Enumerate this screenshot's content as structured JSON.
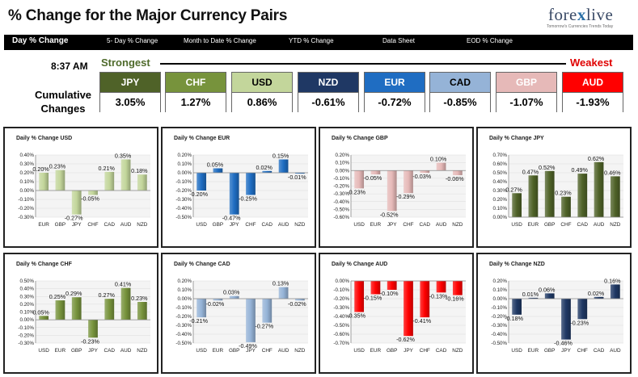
{
  "header": {
    "title": "% Change for the Major Currency Pairs",
    "logo": {
      "pre": "fore",
      "x": "x",
      "post": "live",
      "tagline": "Tomorrow's Currencies Trends Today"
    }
  },
  "nav": [
    {
      "label": "Day % Change",
      "active": true
    },
    {
      "label": "5- Day % Change",
      "active": false
    },
    {
      "label": "Month to Date % Change",
      "active": false
    },
    {
      "label": "YTD % Change",
      "active": false
    },
    {
      "label": "Data Sheet",
      "active": false
    },
    {
      "label": "EOD % Change",
      "active": false
    }
  ],
  "summary": {
    "time": "8:37 AM",
    "strongest": "Strongest",
    "weakest": "Weakest",
    "label_line1": "Cumulative",
    "label_line2": "Changes",
    "currencies": [
      {
        "code": "JPY",
        "value": "3.05%",
        "bg": "#4f6228",
        "fg": "#ffffff"
      },
      {
        "code": "CHF",
        "value": "1.27%",
        "bg": "#77933c",
        "fg": "#ffffff"
      },
      {
        "code": "USD",
        "value": "0.86%",
        "bg": "#c3d69b",
        "fg": "#000000"
      },
      {
        "code": "NZD",
        "value": "-0.61%",
        "bg": "#1f3864",
        "fg": "#ffffff"
      },
      {
        "code": "EUR",
        "value": "-0.72%",
        "bg": "#1f6dc2",
        "fg": "#ffffff"
      },
      {
        "code": "CAD",
        "value": "-0.85%",
        "bg": "#95b3d7",
        "fg": "#000000"
      },
      {
        "code": "GBP",
        "value": "-1.07%",
        "bg": "#e6b9b8",
        "fg": "#ffffff"
      },
      {
        "code": "AUD",
        "value": "-1.93%",
        "bg": "#ff0000",
        "fg": "#ffffff"
      }
    ]
  },
  "chart_data": [
    {
      "type": "bar",
      "title": "Daily % Change USD",
      "color": "#c3d69b",
      "categories": [
        "EUR",
        "GBP",
        "JPY",
        "CHF",
        "CAD",
        "AUD",
        "NZD"
      ],
      "values": [
        0.2,
        0.23,
        -0.27,
        -0.05,
        0.21,
        0.35,
        0.18
      ],
      "labels": [
        "0.20%",
        "0.23%",
        "-0.27%",
        "-0.05%",
        "0.21%",
        "0.35%",
        "0.18%"
      ],
      "ylim": [
        -0.3,
        0.4
      ],
      "yticks": [
        "0.40%",
        "0.30%",
        "0.20%",
        "0.10%",
        "0.00%",
        "-0.10%",
        "-0.20%",
        "-0.30%"
      ]
    },
    {
      "type": "bar",
      "title": "Daily % Change EUR",
      "color": "#1f6dc2",
      "categories": [
        "USD",
        "GBP",
        "JPY",
        "CHF",
        "CAD",
        "AUD",
        "NZD"
      ],
      "values": [
        -0.2,
        0.05,
        -0.47,
        -0.25,
        0.02,
        0.15,
        -0.01
      ],
      "labels": [
        "-0.20%",
        "0.05%",
        "-0.47%",
        "-0.25%",
        "0.02%",
        "0.15%",
        "-0.01%"
      ],
      "ylim": [
        -0.5,
        0.2
      ],
      "yticks": [
        "0.20%",
        "0.10%",
        "0.00%",
        "-0.10%",
        "-0.20%",
        "-0.30%",
        "-0.40%",
        "-0.50%"
      ]
    },
    {
      "type": "bar",
      "title": "Daily % Change GBP",
      "color": "#e6b9b8",
      "categories": [
        "USD",
        "EUR",
        "JPY",
        "CHF",
        "CAD",
        "AUD",
        "NZD"
      ],
      "values": [
        -0.23,
        -0.05,
        -0.52,
        -0.29,
        -0.03,
        0.1,
        -0.06
      ],
      "labels": [
        "-0.23%",
        "-0.05%",
        "-0.52%",
        "-0.29%",
        "-0.03%",
        "0.10%",
        "-0.06%"
      ],
      "ylim": [
        -0.6,
        0.2
      ],
      "yticks": [
        "0.20%",
        "0.10%",
        "0.00%",
        "-0.10%",
        "-0.20%",
        "-0.30%",
        "-0.40%",
        "-0.50%",
        "-0.60%"
      ]
    },
    {
      "type": "bar",
      "title": "Daily % Change JPY",
      "color": "#4f6228",
      "categories": [
        "USD",
        "EUR",
        "GBP",
        "CHF",
        "CAD",
        "AUD",
        "NZD"
      ],
      "values": [
        0.27,
        0.47,
        0.52,
        0.23,
        0.49,
        0.62,
        0.46
      ],
      "labels": [
        "0.27%",
        "0.47%",
        "0.52%",
        "0.23%",
        "0.49%",
        "0.62%",
        "0.46%"
      ],
      "ylim": [
        0.0,
        0.7
      ],
      "yticks": [
        "0.70%",
        "0.60%",
        "0.50%",
        "0.40%",
        "0.30%",
        "0.20%",
        "0.10%",
        "0.00%"
      ]
    },
    {
      "type": "bar",
      "title": "Daily % Change CHF",
      "color": "#77933c",
      "categories": [
        "USD",
        "EUR",
        "GBP",
        "JPY",
        "CAD",
        "AUD",
        "NZD"
      ],
      "values": [
        0.05,
        0.25,
        0.29,
        -0.23,
        0.27,
        0.41,
        0.23
      ],
      "labels": [
        "0.05%",
        "0.25%",
        "0.29%",
        "-0.23%",
        "0.27%",
        "0.41%",
        "0.23%"
      ],
      "ylim": [
        -0.3,
        0.5
      ],
      "yticks": [
        "0.50%",
        "0.40%",
        "0.30%",
        "0.20%",
        "0.10%",
        "0.00%",
        "-0.10%",
        "-0.20%",
        "-0.30%"
      ]
    },
    {
      "type": "bar",
      "title": "Daily % Change CAD",
      "color": "#95b3d7",
      "categories": [
        "USD",
        "EUR",
        "GBP",
        "JPY",
        "CHF",
        "AUD",
        "NZD"
      ],
      "values": [
        -0.21,
        -0.02,
        0.03,
        -0.49,
        -0.27,
        0.13,
        -0.02
      ],
      "labels": [
        "-0.21%",
        "-0.02%",
        "0.03%",
        "-0.49%",
        "-0.27%",
        "0.13%",
        "-0.02%"
      ],
      "ylim": [
        -0.5,
        0.2
      ],
      "yticks": [
        "0.20%",
        "0.10%",
        "0.00%",
        "-0.10%",
        "-0.20%",
        "-0.30%",
        "-0.40%",
        "-0.50%"
      ]
    },
    {
      "type": "bar",
      "title": "Daily % Change AUD",
      "color": "#ff0000",
      "categories": [
        "USD",
        "EUR",
        "GBP",
        "JPY",
        "CHF",
        "CAD",
        "NZD"
      ],
      "values": [
        -0.35,
        -0.15,
        -0.1,
        -0.62,
        -0.41,
        -0.13,
        -0.16
      ],
      "labels": [
        "-0.35%",
        "-0.15%",
        "-0.10%",
        "-0.62%",
        "-0.41%",
        "-0.13%",
        "-0.16%"
      ],
      "ylim": [
        -0.7,
        0.0
      ],
      "yticks": [
        "0.00%",
        "-0.10%",
        "-0.20%",
        "-0.30%",
        "-0.40%",
        "-0.50%",
        "-0.60%",
        "-0.70%"
      ]
    },
    {
      "type": "bar",
      "title": "Daily % Change NZD",
      "color": "#1f3864",
      "categories": [
        "USD",
        "EUR",
        "GBP",
        "JPY",
        "CHF",
        "CAD",
        "AUD"
      ],
      "values": [
        -0.18,
        0.01,
        0.06,
        -0.46,
        -0.23,
        0.02,
        0.16
      ],
      "labels": [
        "-0.18%",
        "0.01%",
        "0.06%",
        "-0.46%",
        "-0.23%",
        "0.02%",
        "0.16%"
      ],
      "ylim": [
        -0.5,
        0.2
      ],
      "yticks": [
        "0.20%",
        "0.10%",
        "0.00%",
        "-0.10%",
        "-0.20%",
        "-0.30%",
        "-0.40%",
        "-0.50%"
      ]
    }
  ]
}
